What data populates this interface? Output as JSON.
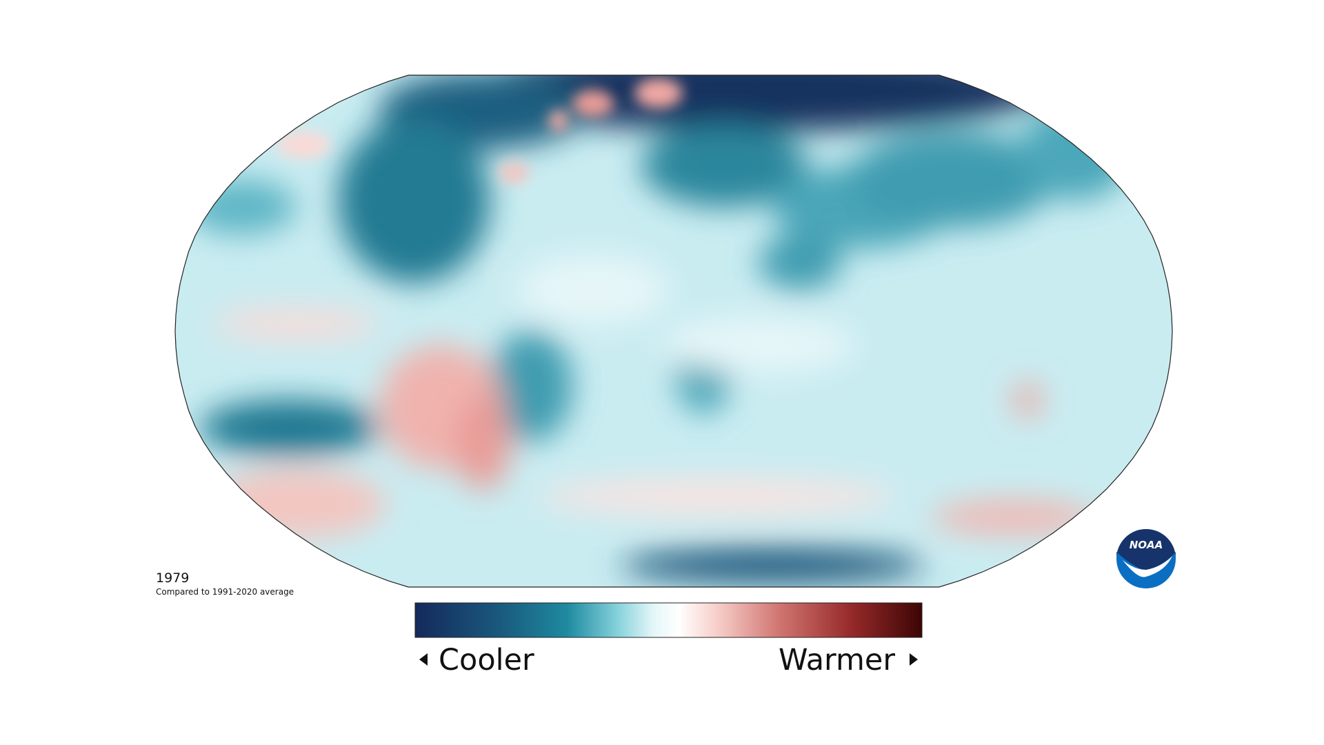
{
  "map": {
    "year": "1979",
    "subtitle": "Compared to 1991-2020 average"
  },
  "legend": {
    "low_label": "Cooler",
    "high_label": "Warmer"
  },
  "logo": {
    "text": "NOAA"
  }
}
